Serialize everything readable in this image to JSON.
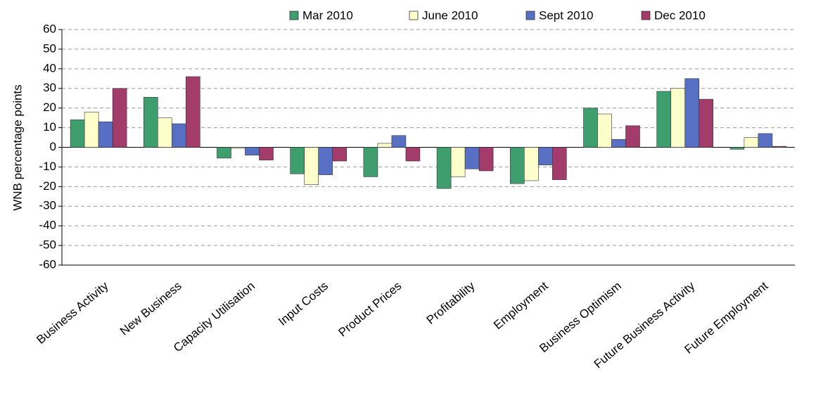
{
  "chart_data": {
    "type": "bar",
    "y_label": "WNB percentage points",
    "categories": [
      "Business Activity",
      "New Business",
      "Capacity Utilisation",
      "Input Costs",
      "Product Prices",
      "Profitability",
      "Employment",
      "Business Optimism",
      "Future Business Activity",
      "Future Employment"
    ],
    "series": [
      {
        "name": "Mar 2010",
        "color": "#3f9e6e",
        "values": [
          14,
          25.5,
          -5.5,
          -13.5,
          -15,
          -21,
          -18.5,
          20,
          28.5,
          -1
        ]
      },
      {
        "name": "June 2010",
        "color": "#ffffcc",
        "values": [
          18,
          15,
          -0.5,
          -19,
          2,
          -15,
          -17,
          17,
          30,
          5
        ]
      },
      {
        "name": "Sept 2010",
        "color": "#5870c4",
        "values": [
          13,
          12,
          -4,
          -14,
          6,
          -11,
          -9,
          4,
          35,
          7
        ]
      },
      {
        "name": "Dec 2010",
        "color": "#a33b6b",
        "values": [
          30,
          36,
          -6.5,
          -7,
          -7,
          -12,
          -16.5,
          11,
          24.5,
          0.5
        ]
      }
    ],
    "ylim": [
      -60,
      60
    ],
    "yticks": [
      -60,
      -50,
      -40,
      -30,
      -20,
      -10,
      0,
      10,
      20,
      30,
      40,
      50,
      60
    ],
    "grid": true
  }
}
